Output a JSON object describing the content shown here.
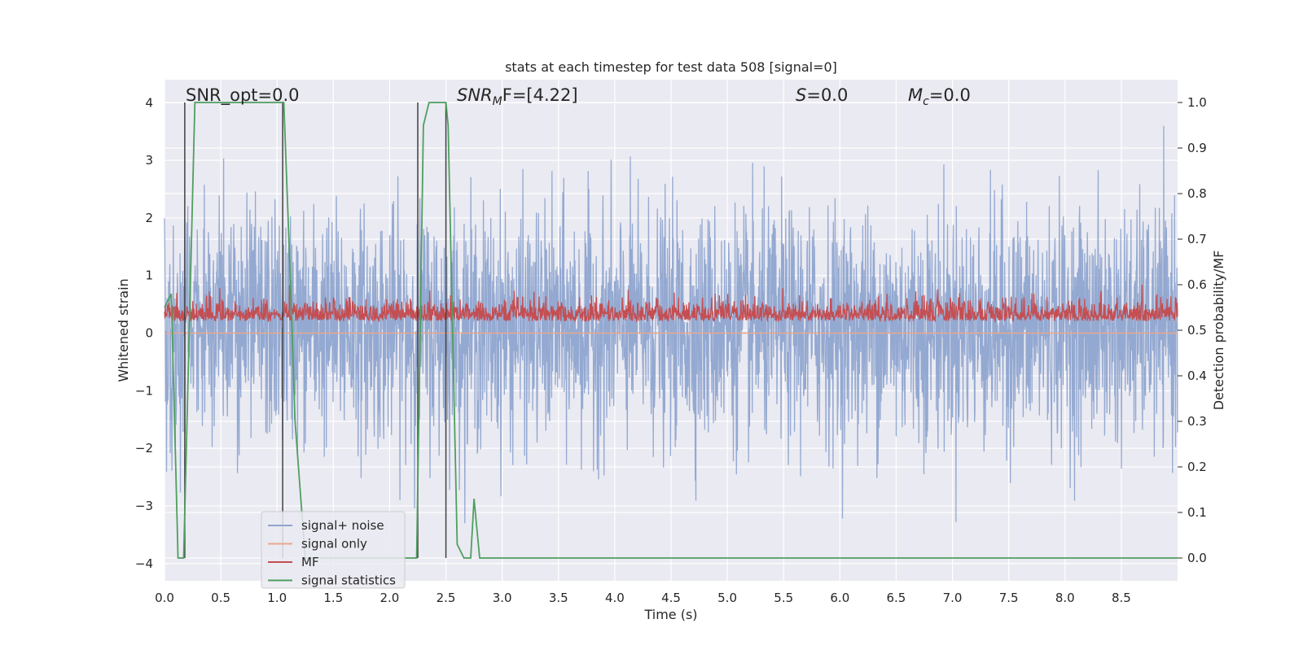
{
  "chart_data": {
    "type": "line",
    "title": "stats at each timestep for test data 508 [signal=0]",
    "xlabel": "Time (s)",
    "ylabel": "Whitened strain",
    "y2label": "Detection probability/MF",
    "xlim": [
      0,
      9.0
    ],
    "ylim": [
      -4.3,
      4.4
    ],
    "y2lim": [
      -0.05,
      1.05
    ],
    "xticks": [
      "0.0",
      "0.5",
      "1.0",
      "1.5",
      "2.0",
      "2.5",
      "3.0",
      "3.5",
      "4.0",
      "4.5",
      "5.0",
      "5.5",
      "6.0",
      "6.5",
      "7.0",
      "7.5",
      "8.0",
      "8.5"
    ],
    "yticks": [
      "−4",
      "−3",
      "−2",
      "−1",
      "0",
      "1",
      "2",
      "3",
      "4"
    ],
    "y2ticks": [
      "0.0",
      "0.1",
      "0.2",
      "0.3",
      "0.4",
      "0.5",
      "0.6",
      "0.7",
      "0.8",
      "0.9",
      "1.0"
    ],
    "grid": true,
    "legend_location": "lower-left",
    "annotations": {
      "snr_opt": "SNR_opt=0.0",
      "snr_mf_prefix": "SNR",
      "snr_mf_sub": "M",
      "snr_mf_rest": "F=[4.22]",
      "s_prefix": "S",
      "s_rest": "=0.0",
      "mc_prefix": "M",
      "mc_sub": "c",
      "mc_rest": "=0.0"
    },
    "series": [
      {
        "name": "signal+ noise",
        "color": "#8fa5cf",
        "axis": "left",
        "description_kind": "noise",
        "amplitude_range": [
          -3.3,
          3.6
        ]
      },
      {
        "name": "signal only",
        "color": "#e9a78d",
        "axis": "left",
        "values": [
          0
        ]
      },
      {
        "name": "MF",
        "color": "#c44e52",
        "axis": "right",
        "range": [
          0.49,
          0.6
        ]
      },
      {
        "name": "signal statistics",
        "color": "#4f9f5e",
        "axis": "right",
        "x": [
          0.0,
          0.06,
          0.1,
          0.12,
          0.17,
          0.22,
          0.27,
          0.35,
          0.6,
          0.9,
          1.06,
          1.12,
          1.16,
          1.25,
          1.35,
          2.24,
          2.3,
          2.35,
          2.5,
          2.52,
          2.6,
          2.66,
          2.72,
          2.75,
          2.8,
          2.85,
          9.0
        ],
        "values": [
          0.55,
          0.58,
          0.2,
          0.0,
          0.0,
          0.5,
          1.0,
          1.0,
          1.0,
          1.0,
          1.0,
          0.6,
          0.3,
          0.0,
          0.0,
          0.0,
          0.95,
          1.0,
          1.0,
          0.95,
          0.03,
          0.0,
          0.0,
          0.13,
          0.0,
          0.0,
          0.0
        ]
      }
    ],
    "vertical_markers": {
      "color": "#404040",
      "x": [
        0.18,
        1.05,
        2.25,
        2.5
      ],
      "range": [
        0.0,
        1.0
      ]
    }
  }
}
